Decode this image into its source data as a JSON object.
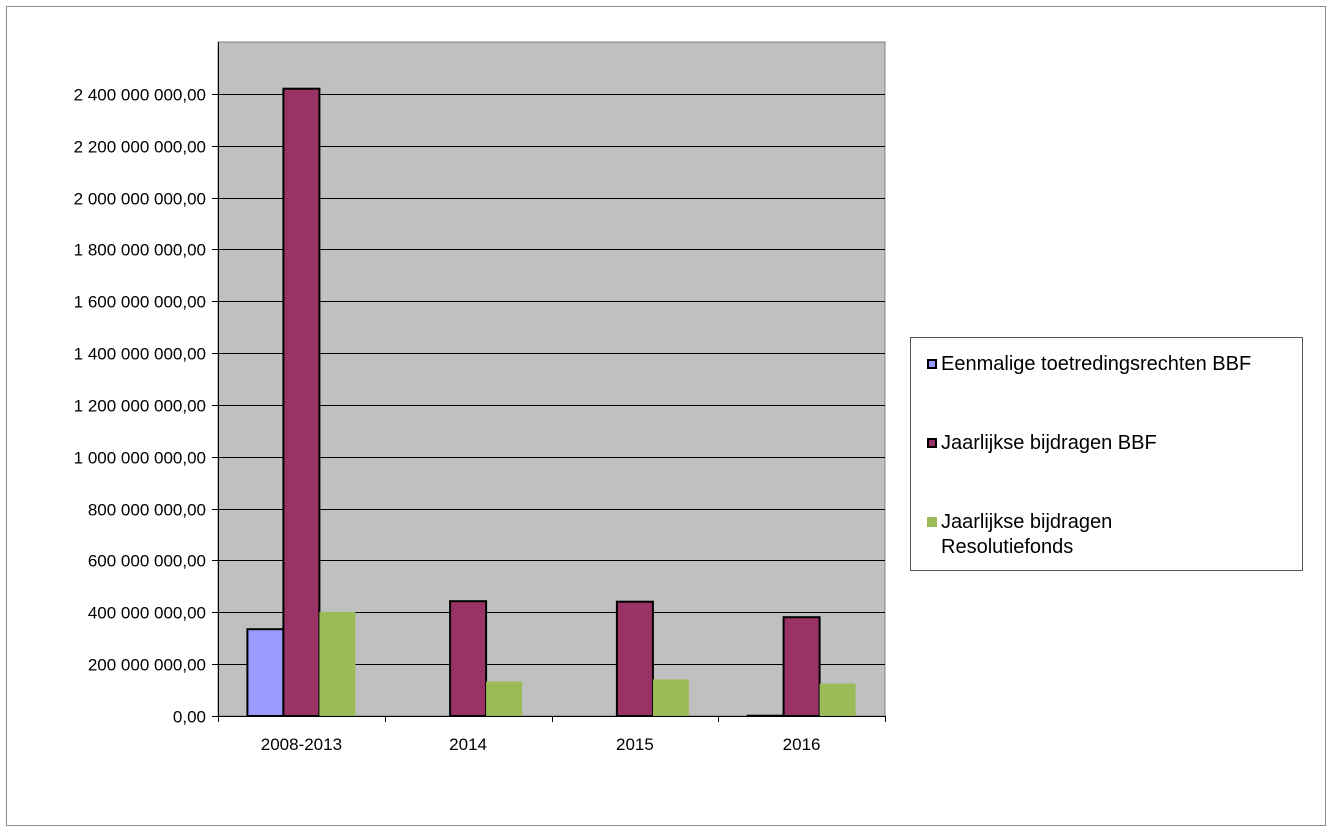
{
  "chart_data": {
    "type": "bar",
    "title": "",
    "xlabel": "",
    "ylabel": "",
    "categories": [
      "2008-2013",
      "2014",
      "2015",
      "2016"
    ],
    "ylim": [
      0,
      2600000000
    ],
    "ytick_step": 200000000,
    "ytick_labels": [
      "0,00",
      "200 000 000,00",
      "400 000 000,00",
      "600 000 000,00",
      "800 000 000,00",
      "1 000 000 000,00",
      "1 200 000 000,00",
      "1 400 000 000,00",
      "1 600 000 000,00",
      "1 800 000 000,00",
      "2 000 000 000,00",
      "2 200 000 000,00",
      "2 400 000 000,00"
    ],
    "grid": true,
    "legend_position": "right",
    "series": [
      {
        "name": "Eenmalige toetredingsrechten BBF",
        "color": "#9999ff",
        "outline": "#000000",
        "values": [
          335000000,
          0,
          0,
          1000000
        ]
      },
      {
        "name": "Jaarlijkse bijdragen BBF",
        "color": "#993366",
        "outline": "#000000",
        "values": [
          2420000000,
          443000000,
          441000000,
          381000000
        ]
      },
      {
        "name": "Jaarlijkse bijdragen Resolutiefonds",
        "color": "#9bbb59",
        "outline": "none",
        "values": [
          402000000,
          133000000,
          141000000,
          125000000
        ]
      }
    ],
    "plot_background": "#c0c0c0",
    "gridline_color": "#000000"
  }
}
